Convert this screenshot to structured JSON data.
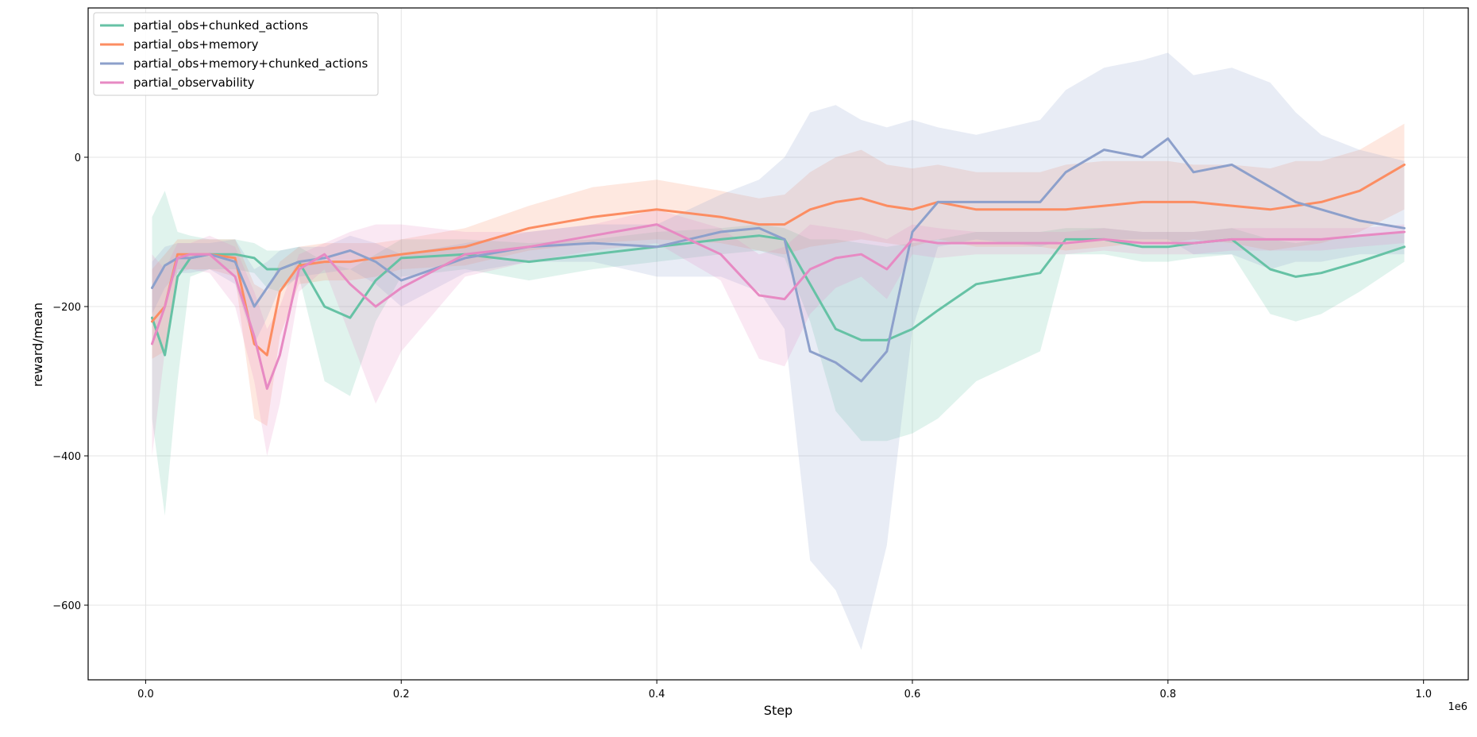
{
  "chart_data": {
    "type": "line",
    "xlabel": "Step",
    "ylabel": "reward/mean",
    "x_offset_label": "1e6",
    "xlim": [
      -0.045,
      1.035
    ],
    "ylim": [
      -700,
      200
    ],
    "x_ticks": [
      0.0,
      0.2,
      0.4,
      0.6,
      0.8,
      1.0
    ],
    "x_tick_labels": [
      "0.0",
      "0.2",
      "0.4",
      "0.6",
      "0.8",
      "1.0"
    ],
    "y_ticks": [
      -600,
      -400,
      -200,
      0
    ],
    "y_tick_labels": [
      "−600",
      "−400",
      "−200",
      "0"
    ],
    "grid": true,
    "legend_position": "upper-left",
    "x": [
      0.005,
      0.015,
      0.025,
      0.035,
      0.05,
      0.07,
      0.085,
      0.095,
      0.105,
      0.12,
      0.14,
      0.16,
      0.18,
      0.2,
      0.25,
      0.3,
      0.35,
      0.4,
      0.45,
      0.48,
      0.5,
      0.52,
      0.54,
      0.56,
      0.58,
      0.6,
      0.62,
      0.65,
      0.7,
      0.72,
      0.75,
      0.78,
      0.8,
      0.82,
      0.85,
      0.88,
      0.9,
      0.92,
      0.95,
      0.985
    ],
    "series": [
      {
        "name": "partial_obs+chunked_actions",
        "color": "#66c2a5",
        "values": [
          -215,
          -265,
          -160,
          -135,
          -130,
          -130,
          -135,
          -150,
          -150,
          -140,
          -200,
          -215,
          -165,
          -135,
          -130,
          -140,
          -130,
          -120,
          -110,
          -105,
          -110,
          -170,
          -230,
          -245,
          -245,
          -230,
          -205,
          -170,
          -155,
          -110,
          -110,
          -120,
          -120,
          -115,
          -110,
          -150,
          -160,
          -155,
          -140,
          -120
        ],
        "upper": [
          -80,
          -45,
          -100,
          -105,
          -110,
          -110,
          -115,
          -125,
          -125,
          -120,
          -140,
          -150,
          -130,
          -110,
          -110,
          -115,
          -110,
          -100,
          -95,
          -90,
          -95,
          -110,
          -110,
          -115,
          -120,
          -115,
          -110,
          -100,
          -100,
          -95,
          -95,
          -100,
          -100,
          -100,
          -95,
          -110,
          -115,
          -110,
          -105,
          -100
        ],
        "lower": [
          -350,
          -480,
          -300,
          -160,
          -150,
          -150,
          -155,
          -175,
          -180,
          -160,
          -300,
          -320,
          -220,
          -160,
          -150,
          -165,
          -150,
          -140,
          -130,
          -125,
          -135,
          -220,
          -340,
          -380,
          -380,
          -370,
          -350,
          -300,
          -260,
          -130,
          -130,
          -140,
          -140,
          -135,
          -130,
          -210,
          -220,
          -210,
          -180,
          -140
        ]
      },
      {
        "name": "partial_obs+memory",
        "color": "#fc8d62",
        "values": [
          -220,
          -200,
          -130,
          -130,
          -130,
          -135,
          -250,
          -265,
          -180,
          -145,
          -140,
          -140,
          -135,
          -130,
          -120,
          -95,
          -80,
          -70,
          -80,
          -90,
          -90,
          -70,
          -60,
          -55,
          -65,
          -70,
          -60,
          -70,
          -70,
          -70,
          -65,
          -60,
          -60,
          -60,
          -65,
          -70,
          -65,
          -60,
          -45,
          -10
        ],
        "upper": [
          -150,
          -130,
          -110,
          -110,
          -110,
          -110,
          -170,
          -180,
          -140,
          -120,
          -115,
          -115,
          -115,
          -110,
          -95,
          -65,
          -40,
          -30,
          -45,
          -55,
          -50,
          -20,
          0,
          10,
          -10,
          -15,
          -10,
          -20,
          -20,
          -10,
          -5,
          -5,
          -5,
          -10,
          -10,
          -15,
          -5,
          -5,
          10,
          45
        ],
        "lower": [
          -270,
          -260,
          -150,
          -150,
          -150,
          -160,
          -350,
          -360,
          -240,
          -170,
          -165,
          -165,
          -160,
          -150,
          -145,
          -125,
          -115,
          -110,
          -115,
          -125,
          -130,
          -120,
          -115,
          -110,
          -115,
          -120,
          -110,
          -120,
          -120,
          -125,
          -120,
          -115,
          -115,
          -110,
          -115,
          -125,
          -120,
          -115,
          -100,
          -70
        ]
      },
      {
        "name": "partial_obs+memory+chunked_actions",
        "color": "#8da0cb",
        "values": [
          -175,
          -145,
          -135,
          -135,
          -130,
          -140,
          -200,
          -175,
          -150,
          -140,
          -135,
          -125,
          -140,
          -165,
          -135,
          -120,
          -115,
          -120,
          -100,
          -95,
          -110,
          -260,
          -275,
          -300,
          -260,
          -100,
          -60,
          -60,
          -60,
          -20,
          10,
          0,
          25,
          -20,
          -10,
          -40,
          -60,
          -70,
          -85,
          -95
        ],
        "upper": [
          -140,
          -120,
          -115,
          -115,
          -115,
          -110,
          -150,
          -140,
          -125,
          -120,
          -120,
          -105,
          -115,
          -130,
          -115,
          -100,
          -90,
          -90,
          -50,
          -30,
          0,
          60,
          70,
          50,
          40,
          50,
          40,
          30,
          50,
          90,
          120,
          130,
          140,
          110,
          120,
          100,
          60,
          30,
          10,
          -5
        ],
        "lower": [
          -210,
          -175,
          -155,
          -155,
          -150,
          -170,
          -250,
          -215,
          -175,
          -160,
          -155,
          -150,
          -170,
          -200,
          -155,
          -140,
          -140,
          -160,
          -160,
          -180,
          -230,
          -540,
          -580,
          -660,
          -520,
          -230,
          -120,
          -110,
          -120,
          -110,
          -110,
          -110,
          -110,
          -130,
          -130,
          -150,
          -140,
          -140,
          -130,
          -130
        ]
      },
      {
        "name": "partial_observability",
        "color": "#e78ac3",
        "values": [
          -250,
          -200,
          -135,
          -130,
          -130,
          -160,
          -240,
          -310,
          -265,
          -150,
          -130,
          -170,
          -200,
          -175,
          -130,
          -120,
          -105,
          -90,
          -130,
          -185,
          -190,
          -150,
          -135,
          -130,
          -150,
          -110,
          -115,
          -115,
          -115,
          -115,
          -110,
          -115,
          -115,
          -115,
          -110,
          -110,
          -110,
          -110,
          -105,
          -100
        ],
        "upper": [
          -130,
          -150,
          -115,
          -115,
          -105,
          -120,
          -180,
          -230,
          -200,
          -130,
          -115,
          -100,
          -90,
          -90,
          -100,
          -100,
          -90,
          -70,
          -95,
          -130,
          -120,
          -90,
          -95,
          -100,
          -110,
          -90,
          -95,
          -100,
          -100,
          -100,
          -95,
          -100,
          -100,
          -100,
          -95,
          -95,
          -95,
          -95,
          -95,
          -90
        ],
        "lower": [
          -400,
          -260,
          -155,
          -150,
          -155,
          -200,
          -300,
          -400,
          -330,
          -180,
          -150,
          -240,
          -330,
          -260,
          -160,
          -140,
          -125,
          -115,
          -165,
          -270,
          -280,
          -210,
          -175,
          -160,
          -190,
          -130,
          -135,
          -130,
          -130,
          -130,
          -125,
          -130,
          -130,
          -130,
          -125,
          -125,
          -125,
          -125,
          -120,
          -115
        ]
      }
    ]
  }
}
